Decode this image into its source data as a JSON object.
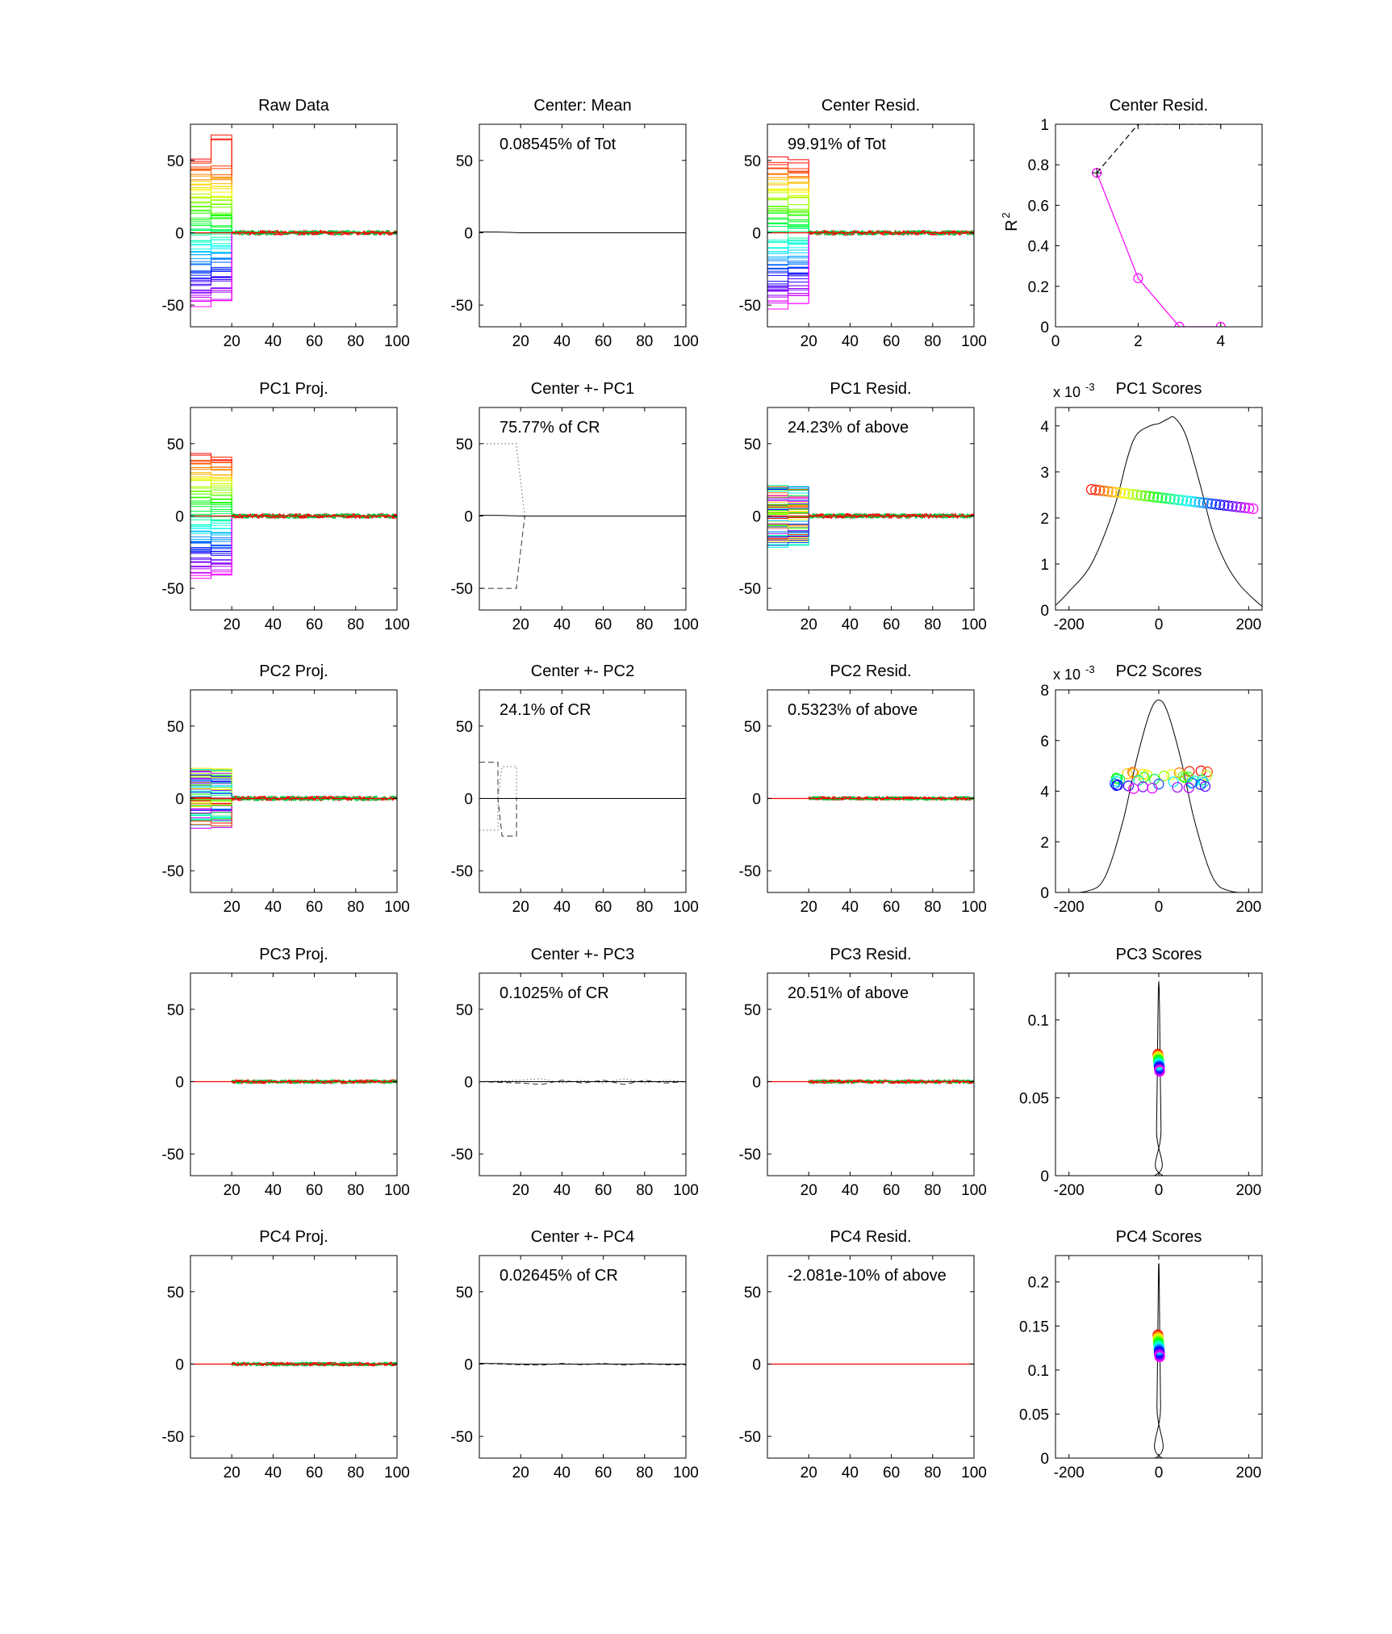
{
  "figure": {
    "background": "#ffffff",
    "axis_color": "#000000"
  },
  "chart_data": [
    {
      "row": 0,
      "col": 0,
      "type": "line",
      "title": "Raw Data",
      "annotation": "",
      "plot": "lines",
      "xlim": [
        0,
        100
      ],
      "ylim": [
        -65,
        75
      ],
      "xticks": [
        20,
        40,
        60,
        80,
        100
      ],
      "yticks": [
        -50,
        0,
        50
      ]
    },
    {
      "row": 0,
      "col": 1,
      "type": "line",
      "title": "Center: Mean",
      "annotation": "0.08545% of Tot",
      "plot": "mean",
      "xlim": [
        0,
        100
      ],
      "ylim": [
        -65,
        75
      ],
      "xticks": [
        20,
        40,
        60,
        80,
        100
      ],
      "yticks": [
        -50,
        0,
        50
      ]
    },
    {
      "row": 0,
      "col": 2,
      "type": "line",
      "title": "Center Resid.",
      "annotation": "99.91% of Tot",
      "plot": "lines",
      "xlim": [
        0,
        100
      ],
      "ylim": [
        -65,
        75
      ],
      "xticks": [
        20,
        40,
        60,
        80,
        100
      ],
      "yticks": [
        -50,
        0,
        50
      ]
    },
    {
      "row": 0,
      "col": 3,
      "type": "line",
      "title": "Center Resid.",
      "annotation": "",
      "plot": "r2",
      "xlim": [
        0,
        5
      ],
      "ylim": [
        0,
        1
      ],
      "xticks": [
        0,
        2,
        4
      ],
      "yticks": [
        0,
        0.2,
        0.4,
        0.6,
        0.8,
        1
      ],
      "ylabel": "R",
      "ylabel_superscript": "2",
      "series": [
        {
          "style": "magenta-circles",
          "color": "#ff00ff",
          "x": [
            1,
            2,
            3,
            4
          ],
          "y": [
            0.76,
            0.24,
            0.0,
            0.0
          ]
        },
        {
          "style": "black-dashed",
          "color": "#000000",
          "x": [
            1,
            2,
            3,
            4
          ],
          "y": [
            0.76,
            1.0,
            1.0,
            1.0
          ]
        }
      ]
    },
    {
      "row": 1,
      "col": 0,
      "type": "line",
      "title": "PC1 Proj.",
      "annotation": "",
      "plot": "lines",
      "xlim": [
        0,
        100
      ],
      "ylim": [
        -65,
        75
      ],
      "xticks": [
        20,
        40,
        60,
        80,
        100
      ],
      "yticks": [
        -50,
        0,
        50
      ]
    },
    {
      "row": 1,
      "col": 1,
      "type": "line",
      "title": "Center +- PC1",
      "annotation": "75.77% of CR",
      "plot": "center_pc",
      "xlim": [
        0,
        100
      ],
      "ylim": [
        -65,
        75
      ],
      "xticks": [
        20,
        40,
        60,
        80,
        100
      ],
      "yticks": [
        -50,
        0,
        50
      ],
      "series": [
        {
          "name": "",
          "style": "dotted",
          "x": [
            0,
            18,
            18,
            22,
            100
          ],
          "y": [
            50,
            50,
            48,
            0,
            0
          ]
        },
        {
          "name": "",
          "style": "dashed",
          "x": [
            0,
            18,
            18,
            22,
            100
          ],
          "y": [
            -50,
            -50,
            -48,
            0,
            0
          ]
        },
        {
          "name": "",
          "style": "solid",
          "x": [
            0,
            10,
            20,
            100
          ],
          "y": [
            0.5,
            0.4,
            0,
            0
          ]
        }
      ]
    },
    {
      "row": 1,
      "col": 2,
      "type": "line",
      "title": "PC1 Resid.",
      "annotation": "24.23% of above",
      "plot": "lines",
      "xlim": [
        0,
        100
      ],
      "ylim": [
        -65,
        75
      ],
      "xticks": [
        20,
        40,
        60,
        80,
        100
      ],
      "yticks": [
        -50,
        0,
        50
      ]
    },
    {
      "row": 1,
      "col": 3,
      "type": "scatter",
      "title": "PC1 Scores",
      "annotation": "",
      "plot": "scores",
      "xlim": [
        -230,
        230
      ],
      "ylim": [
        0,
        4.4
      ],
      "xticks": [
        -200,
        0,
        200
      ],
      "yticks": [
        0,
        1,
        2,
        3,
        4
      ],
      "exponent_label": "x 10",
      "exponent_superscript": "-3",
      "density_curve": {
        "x": [
          -230,
          -200,
          -150,
          -100,
          -70,
          -50,
          -20,
          0,
          20,
          35,
          60,
          90,
          120,
          150,
          180,
          210,
          230
        ],
        "y": [
          0.1,
          0.4,
          1.0,
          2.2,
          3.3,
          3.8,
          4.0,
          4.05,
          4.15,
          4.18,
          3.8,
          2.8,
          1.7,
          1.0,
          0.55,
          0.25,
          0.08
        ]
      },
      "points": {
        "x_range": [
          -150,
          210
        ],
        "y_range": [
          2.62,
          2.2
        ]
      }
    },
    {
      "row": 2,
      "col": 0,
      "type": "line",
      "title": "PC2 Proj.",
      "annotation": "",
      "plot": "lines",
      "xlim": [
        0,
        100
      ],
      "ylim": [
        -65,
        75
      ],
      "xticks": [
        20,
        40,
        60,
        80,
        100
      ],
      "yticks": [
        -50,
        0,
        50
      ]
    },
    {
      "row": 2,
      "col": 1,
      "type": "line",
      "title": "Center +- PC2",
      "annotation": "24.1% of CR",
      "plot": "center_pc",
      "xlim": [
        0,
        100
      ],
      "ylim": [
        -65,
        75
      ],
      "xticks": [
        20,
        40,
        60,
        80,
        100
      ],
      "yticks": [
        -50,
        0,
        50
      ],
      "series": [
        {
          "name": "",
          "style": "dashed",
          "x": [
            0,
            9,
            9,
            11,
            11,
            18,
            18,
            20,
            100
          ],
          "y": [
            25,
            25,
            0,
            -26,
            -26,
            -26,
            0,
            0,
            0
          ]
        },
        {
          "name": "",
          "style": "dotted",
          "x": [
            0,
            9,
            9,
            11,
            11,
            18,
            18,
            20,
            100
          ],
          "y": [
            -22,
            -22,
            0,
            22,
            22,
            22,
            0,
            0,
            0
          ]
        },
        {
          "name": "",
          "style": "solid",
          "x": [
            0,
            100
          ],
          "y": [
            0,
            0
          ]
        }
      ]
    },
    {
      "row": 2,
      "col": 2,
      "type": "line",
      "title": "PC2 Resid.",
      "annotation": "0.5323% of above",
      "plot": "lines",
      "xlim": [
        0,
        100
      ],
      "ylim": [
        -65,
        75
      ],
      "xticks": [
        20,
        40,
        60,
        80,
        100
      ],
      "yticks": [
        -50,
        0,
        50
      ]
    },
    {
      "row": 2,
      "col": 3,
      "type": "scatter",
      "title": "PC2 Scores",
      "annotation": "",
      "plot": "scores",
      "xlim": [
        -230,
        230
      ],
      "ylim": [
        0,
        8
      ],
      "xticks": [
        -200,
        0,
        200
      ],
      "yticks": [
        0,
        2,
        4,
        6,
        8
      ],
      "exponent_label": "x 10",
      "exponent_superscript": "-3",
      "density_curve": {
        "x": [
          -230,
          -160,
          -120,
          -80,
          -50,
          -20,
          0,
          20,
          50,
          80,
          120,
          160,
          230
        ],
        "y": [
          0,
          0.05,
          0.6,
          2.8,
          5.2,
          7.1,
          7.6,
          7.1,
          5.2,
          2.8,
          0.6,
          0.05,
          0
        ]
      },
      "points": {
        "x_range": [
          -100,
          110
        ],
        "y_range": [
          4.8,
          4.1
        ]
      }
    },
    {
      "row": 3,
      "col": 0,
      "type": "line",
      "title": "PC3 Proj.",
      "annotation": "",
      "plot": "lines",
      "xlim": [
        0,
        100
      ],
      "ylim": [
        -65,
        75
      ],
      "xticks": [
        20,
        40,
        60,
        80,
        100
      ],
      "yticks": [
        -50,
        0,
        50
      ]
    },
    {
      "row": 3,
      "col": 1,
      "type": "line",
      "title": "Center +- PC3",
      "annotation": "0.1025% of CR",
      "plot": "center_pc",
      "xlim": [
        0,
        100
      ],
      "ylim": [
        -65,
        75
      ],
      "xticks": [
        20,
        40,
        60,
        80,
        100
      ],
      "yticks": [
        -50,
        0,
        50
      ],
      "series": [
        {
          "name": "",
          "style": "dashed",
          "x": [
            0,
            20,
            30,
            40,
            50,
            60,
            70,
            80,
            90,
            100
          ],
          "y": [
            0,
            -1,
            -2,
            1,
            -1,
            1,
            -2,
            1,
            -1,
            0
          ]
        },
        {
          "name": "",
          "style": "dotted",
          "x": [
            0,
            20,
            30,
            40,
            50,
            60,
            70,
            80,
            90,
            100
          ],
          "y": [
            0,
            1,
            2,
            -1,
            1,
            -1,
            2,
            -1,
            1,
            0
          ]
        },
        {
          "name": "",
          "style": "solid",
          "x": [
            0,
            100
          ],
          "y": [
            0,
            0
          ]
        }
      ]
    },
    {
      "row": 3,
      "col": 2,
      "type": "line",
      "title": "PC3 Resid.",
      "annotation": "20.51% of above",
      "plot": "lines",
      "xlim": [
        0,
        100
      ],
      "ylim": [
        -65,
        75
      ],
      "xticks": [
        20,
        40,
        60,
        80,
        100
      ],
      "yticks": [
        -50,
        0,
        50
      ]
    },
    {
      "row": 3,
      "col": 3,
      "type": "scatter",
      "title": "PC3 Scores",
      "annotation": "",
      "plot": "scores",
      "xlim": [
        -230,
        230
      ],
      "ylim": [
        0,
        0.13
      ],
      "xticks": [
        -200,
        0,
        200
      ],
      "yticks": [
        0,
        0.05,
        0.1
      ],
      "density_curve": {
        "x": [
          -230,
          -10,
          -5,
          -2,
          0,
          2,
          5,
          10,
          230
        ],
        "y": [
          0,
          0,
          0.03,
          0.1,
          0.125,
          0.1,
          0.03,
          0,
          0
        ]
      },
      "points": {
        "x_range": [
          -2,
          2
        ],
        "y_range": [
          0.078,
          0.067
        ]
      }
    },
    {
      "row": 4,
      "col": 0,
      "type": "line",
      "title": "PC4 Proj.",
      "annotation": "",
      "plot": "lines",
      "xlim": [
        0,
        100
      ],
      "ylim": [
        -65,
        75
      ],
      "xticks": [
        20,
        40,
        60,
        80,
        100
      ],
      "yticks": [
        -50,
        0,
        50
      ]
    },
    {
      "row": 4,
      "col": 1,
      "type": "line",
      "title": "Center +- PC4",
      "annotation": "0.02645% of CR",
      "plot": "center_pc",
      "xlim": [
        0,
        100
      ],
      "ylim": [
        -65,
        75
      ],
      "xticks": [
        20,
        40,
        60,
        80,
        100
      ],
      "yticks": [
        -50,
        0,
        50
      ],
      "series": [
        {
          "name": "",
          "style": "dashed",
          "x": [
            0,
            20,
            30,
            40,
            50,
            60,
            70,
            80,
            90,
            100
          ],
          "y": [
            0.5,
            -0.5,
            -0.8,
            0.5,
            -0.5,
            0.5,
            -0.8,
            0.5,
            -0.5,
            -0.5
          ]
        },
        {
          "name": "",
          "style": "solid",
          "x": [
            0,
            10,
            20,
            100
          ],
          "y": [
            0.5,
            0.3,
            0,
            0
          ]
        }
      ]
    },
    {
      "row": 4,
      "col": 2,
      "type": "line",
      "title": "PC4 Resid.",
      "annotation": "-2.081e-10% of above",
      "plot": "flat",
      "xlim": [
        0,
        100
      ],
      "ylim": [
        -65,
        75
      ],
      "xticks": [
        20,
        40,
        60,
        80,
        100
      ],
      "yticks": [
        -50,
        0,
        50
      ]
    },
    {
      "row": 4,
      "col": 3,
      "type": "scatter",
      "title": "PC4 Scores",
      "annotation": "",
      "plot": "scores",
      "xlim": [
        -230,
        230
      ],
      "ylim": [
        0,
        0.23
      ],
      "xticks": [
        -200,
        0,
        200
      ],
      "yticks": [
        0,
        0.05,
        0.1,
        0.15,
        0.2
      ],
      "density_curve": {
        "x": [
          -230,
          -8,
          -4,
          -1,
          0,
          1,
          4,
          8,
          230
        ],
        "y": [
          0,
          0,
          0.06,
          0.2,
          0.22,
          0.2,
          0.06,
          0,
          0
        ]
      },
      "points": {
        "x_range": [
          -2,
          2
        ],
        "y_range": [
          0.14,
          0.115
        ]
      }
    }
  ]
}
